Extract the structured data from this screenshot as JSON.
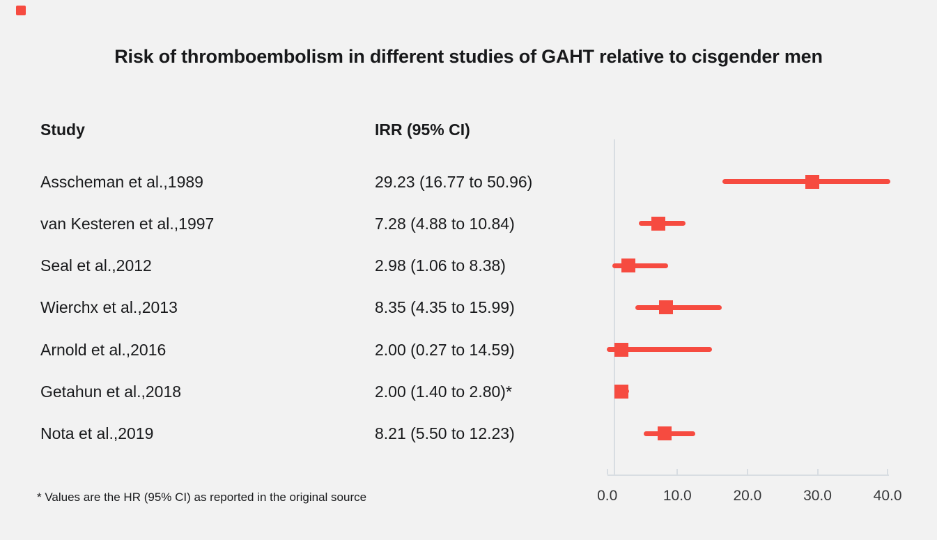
{
  "page": {
    "background_color": "#f2f2f2",
    "accent_color": "#f64b40",
    "axis_color": "#d8dde2",
    "text_color": "#18191b",
    "tick_text_color": "#37383a"
  },
  "brand_mark": {
    "color": "#f64b40"
  },
  "title": "Risk of thromboembolism in different studies of GAHT relative to cisgender men",
  "table": {
    "study_header": "Study",
    "value_header": "IRR (95% CI)"
  },
  "footnote": "* Values are the HR (95% CI) as reported in the original source",
  "chart_data": {
    "type": "scatter",
    "subtype": "forest-plot",
    "title": "Risk of thromboembolism in different studies of GAHT relative to cisgender men",
    "xlabel": "",
    "ylabel": "",
    "xlim": [
      0,
      40
    ],
    "x_ticks": [
      0.0,
      10.0,
      20.0,
      30.0,
      40.0
    ],
    "x_tick_labels": [
      "0.0",
      "10.0",
      "20.0",
      "30.0",
      "40.0"
    ],
    "reference_line_x": 1.0,
    "grid": "off",
    "marker": "square",
    "marker_color": "#f64b40",
    "rows": [
      {
        "study": "Asscheman et al.,1989",
        "value_text": "29.23 (16.77 to 50.96)",
        "irr": 29.23,
        "ci_low": 16.77,
        "ci_high": 50.96
      },
      {
        "study": "van Kesteren et al.,1997",
        "value_text": "7.28 (4.88 to 10.84)",
        "irr": 7.28,
        "ci_low": 4.88,
        "ci_high": 10.84
      },
      {
        "study": "Seal et al.,2012",
        "value_text": "2.98 (1.06 to 8.38)",
        "irr": 2.98,
        "ci_low": 1.06,
        "ci_high": 8.38
      },
      {
        "study": "Wierchx et al.,2013",
        "value_text": "8.35 (4.35 to 15.99)",
        "irr": 8.35,
        "ci_low": 4.35,
        "ci_high": 15.99
      },
      {
        "study": "Arnold et al.,2016",
        "value_text": "2.00 (0.27 to 14.59)",
        "irr": 2.0,
        "ci_low": 0.27,
        "ci_high": 14.59
      },
      {
        "study": "Getahun et al.,2018",
        "value_text": "2.00 (1.40 to 2.80)*",
        "irr": 2.0,
        "ci_low": 1.4,
        "ci_high": 2.8
      },
      {
        "study": "Nota et al.,2019",
        "value_text": "8.21 (5.50 to 12.23)",
        "irr": 8.21,
        "ci_low": 5.5,
        "ci_high": 12.23
      }
    ]
  }
}
